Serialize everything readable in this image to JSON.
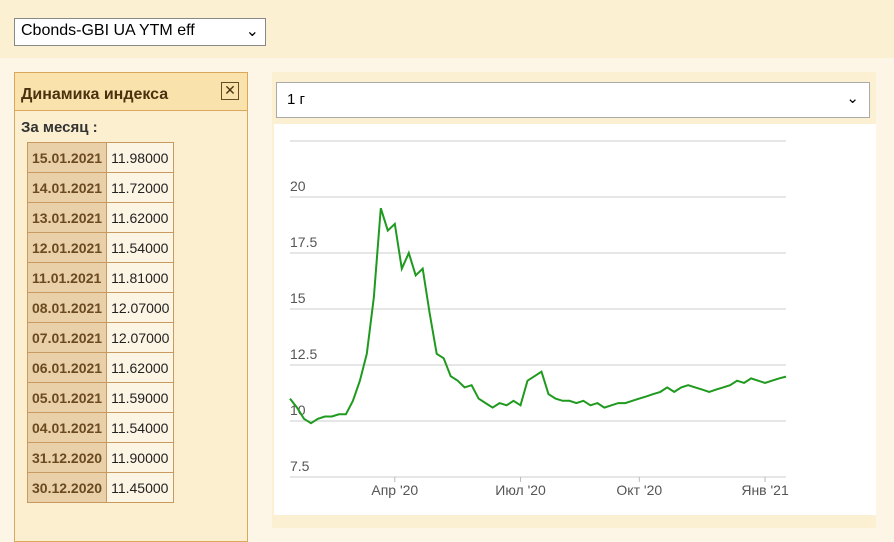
{
  "index_select": "Cbonds-GBI UA YTM eff",
  "panel": {
    "title": "Динамика индекса",
    "subtitle": "За месяц :",
    "rows": [
      [
        "15.01.2021",
        "11.98000"
      ],
      [
        "14.01.2021",
        "11.72000"
      ],
      [
        "13.01.2021",
        "11.62000"
      ],
      [
        "12.01.2021",
        "11.54000"
      ],
      [
        "11.01.2021",
        "11.81000"
      ],
      [
        "08.01.2021",
        "12.07000"
      ],
      [
        "07.01.2021",
        "12.07000"
      ],
      [
        "06.01.2021",
        "11.62000"
      ],
      [
        "05.01.2021",
        "11.59000"
      ],
      [
        "04.01.2021",
        "11.54000"
      ],
      [
        "31.12.2020",
        "11.90000"
      ],
      [
        "30.12.2020",
        "11.45000"
      ]
    ]
  },
  "period_select": "1 г",
  "chart_data": {
    "type": "line",
    "categories": [
      null,
      null,
      null,
      null,
      null,
      null,
      null,
      null,
      null,
      null,
      null,
      null,
      null,
      null,
      null,
      "Апр '20",
      null,
      null,
      null,
      null,
      null,
      null,
      null,
      null,
      null,
      null,
      null,
      null,
      null,
      null,
      null,
      null,
      null,
      "Июл '20",
      null,
      null,
      null,
      null,
      null,
      null,
      null,
      null,
      null,
      null,
      null,
      null,
      null,
      null,
      null,
      null,
      "Окт '20",
      null,
      null,
      null,
      null,
      null,
      null,
      null,
      null,
      null,
      null,
      null,
      null,
      null,
      null,
      null,
      null,
      null,
      "Янв '21",
      null,
      null,
      null
    ],
    "series": [
      {
        "color": "#1f9a1f",
        "values": [
          11.0,
          10.6,
          10.1,
          9.9,
          10.1,
          10.2,
          10.2,
          10.3,
          10.3,
          10.9,
          11.8,
          13.0,
          15.5,
          19.5,
          18.5,
          18.8,
          16.8,
          17.5,
          16.5,
          16.8,
          14.8,
          13.0,
          12.8,
          12.0,
          11.8,
          11.5,
          11.6,
          11.0,
          10.8,
          10.6,
          10.8,
          10.7,
          10.9,
          10.7,
          11.8,
          12.0,
          12.2,
          11.2,
          11.0,
          10.9,
          10.9,
          10.8,
          10.9,
          10.7,
          10.8,
          10.6,
          10.7,
          10.8,
          10.8,
          10.9,
          11.0,
          11.1,
          11.2,
          11.3,
          11.5,
          11.3,
          11.5,
          11.6,
          11.5,
          11.4,
          11.3,
          11.4,
          11.5,
          11.6,
          11.8,
          11.7,
          11.9,
          11.8,
          11.7,
          11.8,
          11.9,
          11.98
        ]
      }
    ],
    "ylim": [
      7.5,
      22.5
    ],
    "yticks": [
      7.5,
      10,
      12.5,
      15,
      17.5,
      20
    ],
    "grid": true
  }
}
